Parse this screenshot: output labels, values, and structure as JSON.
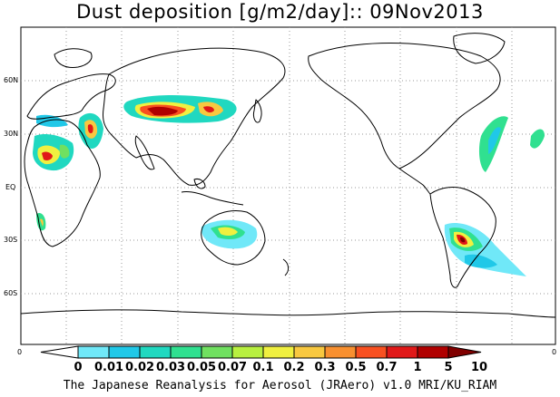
{
  "title": "Dust deposition [g/m2/day]:: 09Nov2013",
  "lat_labels": [
    {
      "id": "60n",
      "text": "60N"
    },
    {
      "id": "30n",
      "text": "30N"
    },
    {
      "id": "eq",
      "text": "EQ"
    },
    {
      "id": "30s",
      "text": "30S"
    },
    {
      "id": "60s",
      "text": "60S"
    }
  ],
  "axis_zero_left": "0",
  "axis_zero_right": "0",
  "legend": {
    "levels": [
      "0",
      "0.01",
      "0.02",
      "0.03",
      "0.05",
      "0.07",
      "0.1",
      "0.2",
      "0.3",
      "0.5",
      "0.7",
      "1",
      "5",
      "10"
    ],
    "colors": [
      "#ffffff",
      "#70e8f8",
      "#20c8e8",
      "#20d8c0",
      "#30e090",
      "#70e060",
      "#b8f040",
      "#f0f040",
      "#f8c840",
      "#f89030",
      "#f85020",
      "#e01818",
      "#b00000",
      "#800000"
    ]
  },
  "footer": "The Japanese Reanalysis for Aerosol (JRAero) v1.0 MRI/KU_RIAM"
}
